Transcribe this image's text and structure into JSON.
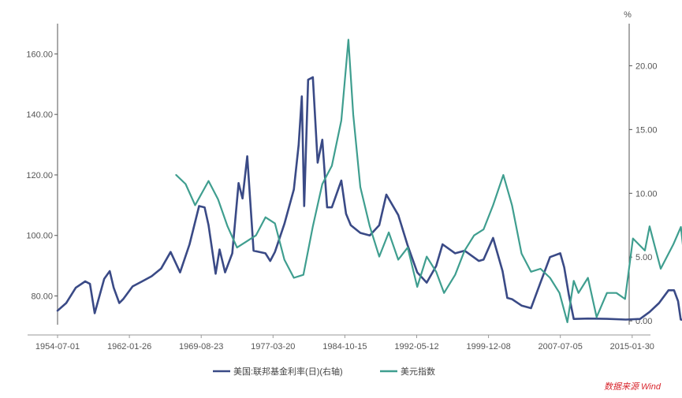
{
  "chart_data": {
    "type": "line",
    "unit_right": "%",
    "source": "数据来源 Wind",
    "x_tick_labels": [
      "1954-07-01",
      "1962-01-26",
      "1969-08-23",
      "1977-03-20",
      "1984-10-15",
      "1992-05-12",
      "1999-12-08",
      "2007-07-05",
      "2015-01-30"
    ],
    "y_left": {
      "ticks": [
        80,
        100,
        120,
        140,
        160
      ],
      "tick_labels": [
        "80.00",
        "100.00",
        "120.00",
        "140.00",
        "160.00"
      ],
      "range": [
        70.5,
        170
      ]
    },
    "y_right": {
      "ticks": [
        0,
        5,
        10,
        15,
        20
      ],
      "tick_labels": [
        "0.00",
        "5.00",
        "10.00",
        "15.00",
        "20.00"
      ],
      "range": [
        -0.3,
        23.3
      ]
    },
    "grid": false,
    "legend_position": "bottom",
    "colors": {
      "fed_funds": "#3a4a86",
      "dxy": "#3f9e8f",
      "axis": "#555555",
      "source": "#d8262e"
    },
    "series": [
      {
        "name": "美国:联邦基金利率(日)(右轴)",
        "axis": "right",
        "points": [
          [
            "1954-07-01",
            0.8
          ],
          [
            "1955-06-01",
            1.4
          ],
          [
            "1956-06-01",
            2.6
          ],
          [
            "1957-06-01",
            3.1
          ],
          [
            "1957-12-01",
            2.9
          ],
          [
            "1958-06-01",
            0.6
          ],
          [
            "1959-06-01",
            3.3
          ],
          [
            "1960-01-01",
            3.9
          ],
          [
            "1960-06-01",
            2.6
          ],
          [
            "1961-01-01",
            1.4
          ],
          [
            "1961-06-01",
            1.7
          ],
          [
            "1962-06-01",
            2.7
          ],
          [
            "1963-06-01",
            3.1
          ],
          [
            "1964-06-01",
            3.5
          ],
          [
            "1965-06-01",
            4.1
          ],
          [
            "1966-06-01",
            5.4
          ],
          [
            "1967-06-01",
            3.8
          ],
          [
            "1968-06-01",
            6.0
          ],
          [
            "1969-06-01",
            9.0
          ],
          [
            "1970-01-01",
            8.9
          ],
          [
            "1970-06-01",
            7.5
          ],
          [
            "1971-03-01",
            3.7
          ],
          [
            "1971-08-01",
            5.6
          ],
          [
            "1972-03-01",
            3.8
          ],
          [
            "1972-12-01",
            5.3
          ],
          [
            "1973-08-01",
            10.8
          ],
          [
            "1974-01-01",
            9.6
          ],
          [
            "1974-07-01",
            12.9
          ],
          [
            "1975-03-01",
            5.5
          ],
          [
            "1976-06-01",
            5.3
          ],
          [
            "1976-12-01",
            4.7
          ],
          [
            "1977-06-01",
            5.4
          ],
          [
            "1978-06-01",
            7.6
          ],
          [
            "1979-06-01",
            10.3
          ],
          [
            "1979-12-01",
            13.8
          ],
          [
            "1980-04-01",
            17.6
          ],
          [
            "1980-07-01",
            9.0
          ],
          [
            "1980-12-01",
            18.9
          ],
          [
            "1981-06-01",
            19.1
          ],
          [
            "1981-12-01",
            12.4
          ],
          [
            "1982-06-01",
            14.2
          ],
          [
            "1982-12-01",
            8.9
          ],
          [
            "1983-06-01",
            8.9
          ],
          [
            "1984-06-01",
            11.0
          ],
          [
            "1984-12-01",
            8.4
          ],
          [
            "1985-06-01",
            7.5
          ],
          [
            "1986-06-01",
            6.9
          ],
          [
            "1987-06-01",
            6.7
          ],
          [
            "1988-06-01",
            7.5
          ],
          [
            "1989-03-01",
            9.9
          ],
          [
            "1990-06-01",
            8.3
          ],
          [
            "1991-06-01",
            5.9
          ],
          [
            "1992-06-01",
            3.8
          ],
          [
            "1993-06-01",
            3.0
          ],
          [
            "1994-06-01",
            4.3
          ],
          [
            "1995-02-01",
            6.0
          ],
          [
            "1996-06-01",
            5.3
          ],
          [
            "1997-06-01",
            5.5
          ],
          [
            "1998-12-01",
            4.7
          ],
          [
            "1999-06-01",
            4.8
          ],
          [
            "2000-06-01",
            6.5
          ],
          [
            "2001-06-01",
            3.9
          ],
          [
            "2001-12-01",
            1.8
          ],
          [
            "2002-06-01",
            1.7
          ],
          [
            "2003-06-01",
            1.2
          ],
          [
            "2004-06-01",
            1.0
          ],
          [
            "2005-06-01",
            3.0
          ],
          [
            "2006-06-01",
            5.0
          ],
          [
            "2007-07-01",
            5.3
          ],
          [
            "2007-12-01",
            4.2
          ],
          [
            "2008-06-01",
            2.0
          ],
          [
            "2008-12-01",
            0.15
          ],
          [
            "2010-06-01",
            0.18
          ],
          [
            "2012-06-01",
            0.16
          ],
          [
            "2014-06-01",
            0.1
          ],
          [
            "2015-12-01",
            0.15
          ],
          [
            "2016-12-01",
            0.7
          ],
          [
            "2017-12-01",
            1.4
          ],
          [
            "2018-12-01",
            2.4
          ],
          [
            "2019-07-01",
            2.4
          ],
          [
            "2019-12-01",
            1.55
          ],
          [
            "2020-03-15",
            0.1
          ],
          [
            "2020-06-01",
            0.08
          ]
        ]
      },
      {
        "name": "美元指数",
        "axis": "left",
        "points": [
          [
            "1967-01-01",
            120.0
          ],
          [
            "1968-01-01",
            117.0
          ],
          [
            "1969-01-01",
            110.0
          ],
          [
            "1970-06-01",
            118.0
          ],
          [
            "1971-06-01",
            112.0
          ],
          [
            "1972-06-01",
            103.0
          ],
          [
            "1973-06-01",
            96.0
          ],
          [
            "1974-06-01",
            98.0
          ],
          [
            "1975-06-01",
            100.0
          ],
          [
            "1976-06-01",
            106.0
          ],
          [
            "1977-06-01",
            104.0
          ],
          [
            "1978-06-01",
            92.0
          ],
          [
            "1979-06-01",
            86.0
          ],
          [
            "1980-06-01",
            87.0
          ],
          [
            "1981-06-01",
            103.0
          ],
          [
            "1982-06-01",
            117.0
          ],
          [
            "1983-06-01",
            123.0
          ],
          [
            "1984-06-01",
            138.0
          ],
          [
            "1985-03-01",
            164.7
          ],
          [
            "1985-09-01",
            140.0
          ],
          [
            "1986-06-01",
            116.0
          ],
          [
            "1987-06-01",
            103.0
          ],
          [
            "1988-06-01",
            93.0
          ],
          [
            "1989-06-01",
            101.0
          ],
          [
            "1990-06-01",
            92.0
          ],
          [
            "1991-06-01",
            96.0
          ],
          [
            "1992-06-01",
            83.0
          ],
          [
            "1993-06-01",
            93.0
          ],
          [
            "1994-06-01",
            88.0
          ],
          [
            "1995-04-01",
            81.0
          ],
          [
            "1996-06-01",
            87.0
          ],
          [
            "1997-06-01",
            95.0
          ],
          [
            "1998-06-01",
            100.0
          ],
          [
            "1999-06-01",
            102.0
          ],
          [
            "2000-06-01",
            110.0
          ],
          [
            "2001-07-01",
            120.0
          ],
          [
            "2002-06-01",
            110.0
          ],
          [
            "2003-06-01",
            94.0
          ],
          [
            "2004-06-01",
            88.0
          ],
          [
            "2005-06-01",
            89.0
          ],
          [
            "2006-06-01",
            86.0
          ],
          [
            "2007-06-01",
            81.0
          ],
          [
            "2008-04-01",
            71.3
          ],
          [
            "2008-12-01",
            85.0
          ],
          [
            "2009-06-01",
            81.0
          ],
          [
            "2010-06-01",
            86.0
          ],
          [
            "2011-05-01",
            73.0
          ],
          [
            "2012-06-01",
            81.0
          ],
          [
            "2013-06-01",
            81.0
          ],
          [
            "2014-05-01",
            79.0
          ],
          [
            "2015-03-01",
            99.0
          ],
          [
            "2016-06-01",
            95.0
          ],
          [
            "2016-12-01",
            103.0
          ],
          [
            "2017-06-01",
            97.0
          ],
          [
            "2018-02-01",
            89.0
          ],
          [
            "2019-06-01",
            97.0
          ],
          [
            "2020-03-20",
            102.8
          ],
          [
            "2020-06-01",
            97.0
          ]
        ]
      }
    ]
  }
}
